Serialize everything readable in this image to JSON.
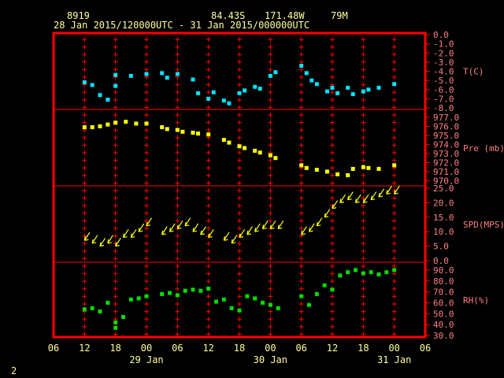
{
  "header": {
    "station_id": "8919",
    "latitude": "84.43S",
    "longitude": "171.48W",
    "elevation": "79M",
    "period": "28 Jan 2015/120000UTC - 31 Jan 2015/000000UTC"
  },
  "frame_number": "2",
  "colors": {
    "frame": "#ff0000",
    "text": "#ffff99",
    "axis_labels": "#ff8080",
    "temperature": "#00e5ff",
    "pressure": "#ffff00",
    "wind": "#ffff00",
    "rh": "#00dd00"
  },
  "x_axis": {
    "tick_labels": [
      "06",
      "12",
      "18",
      "00",
      "06",
      "12",
      "18",
      "00",
      "06",
      "12",
      "18",
      "00",
      "06"
    ],
    "day_labels": [
      "29 Jan",
      "30 Jan",
      "31 Jan"
    ],
    "hours_range": [
      6,
      78
    ]
  },
  "chart_data": [
    {
      "type": "scatter",
      "name": "T(C)",
      "ylabel": "T(C)",
      "yticks": [
        "0.0",
        "-1.0",
        "-2.0",
        "-3.0",
        "-4.0",
        "-5.0",
        "-6.0",
        "-7.0",
        "-8.0"
      ],
      "ylim": [
        -8,
        0
      ],
      "x": [
        12,
        13.5,
        15,
        16.5,
        18,
        18,
        21,
        24,
        27,
        28,
        30,
        33,
        34,
        36,
        37,
        39,
        40,
        42,
        43,
        45,
        46,
        48,
        49,
        54,
        55,
        56,
        57,
        59,
        60,
        61,
        63,
        64,
        66,
        67,
        69,
        72
      ],
      "values": [
        -5.2,
        -5.5,
        -6.6,
        -7.1,
        -4.4,
        -5.6,
        -4.5,
        -4.3,
        -4.2,
        -4.7,
        -4.3,
        -4.9,
        -6.4,
        -7.0,
        -6.3,
        -7.2,
        -7.5,
        -6.4,
        -6.1,
        -5.7,
        -5.9,
        -4.5,
        -4.1,
        -3.4,
        -4.2,
        -5.0,
        -5.4,
        -6.2,
        -5.8,
        -6.4,
        -5.8,
        -6.5,
        -6.2,
        -6.0,
        -5.8,
        -5.4
      ]
    },
    {
      "type": "scatter",
      "name": "Pre (mb)",
      "ylabel": "Pre (mb)",
      "yticks": [
        "977.0",
        "976.0",
        "975.0",
        "974.0",
        "973.0",
        "972.0",
        "971.0",
        "970.0"
      ],
      "ylim": [
        969.6,
        977.6
      ],
      "x": [
        12,
        13.5,
        15,
        16.5,
        18,
        20,
        22,
        24,
        27,
        28,
        30,
        31,
        33,
        34,
        36,
        39,
        40,
        42,
        43,
        45,
        46,
        48,
        49,
        54,
        55,
        57,
        59,
        61,
        63,
        64,
        66,
        67,
        69,
        72
      ],
      "values": [
        975.9,
        975.9,
        976.0,
        976.2,
        976.4,
        976.5,
        976.3,
        976.3,
        975.9,
        975.7,
        975.6,
        975.4,
        975.3,
        975.2,
        975.1,
        974.5,
        974.2,
        973.8,
        973.6,
        973.3,
        973.1,
        972.8,
        972.5,
        971.7,
        971.4,
        971.2,
        971.0,
        970.7,
        970.6,
        971.3,
        971.5,
        971.4,
        971.3,
        971.7
      ]
    },
    {
      "type": "wind_barbs",
      "name": "SPD(MPS)",
      "ylabel": "SPD(MPS)",
      "yticks": [
        "25.0",
        "20.0",
        "15.0",
        "10.0",
        "5.0",
        "0.0"
      ],
      "ylim": [
        0,
        25
      ],
      "x": [
        12,
        13.5,
        15,
        16.5,
        18,
        19.5,
        21,
        22.5,
        24,
        27,
        28.5,
        30,
        31.5,
        33,
        34.5,
        36,
        39,
        40.5,
        42,
        43.5,
        45,
        46.5,
        48,
        49.5,
        54,
        55.5,
        57,
        58.5,
        60,
        61.5,
        63,
        64.5,
        66,
        67.5,
        69,
        70.5,
        72
      ],
      "values": [
        7,
        6,
        5,
        6,
        5,
        8,
        8,
        10,
        12,
        9,
        10,
        11,
        12,
        10,
        9,
        8,
        7,
        6,
        8,
        9,
        10,
        11,
        11,
        11,
        9,
        10,
        12,
        15,
        18,
        20,
        21,
        20,
        20,
        21,
        22,
        23,
        23
      ]
    },
    {
      "type": "scatter",
      "name": "RH(%)",
      "ylabel": "RH(%)",
      "yticks": [
        "90.0",
        "80.0",
        "70.0",
        "60.0",
        "50.0",
        "40.0",
        "30.0"
      ],
      "ylim": [
        30,
        95
      ],
      "x": [
        12,
        13.5,
        15,
        16.5,
        18,
        18,
        19.5,
        21,
        22.5,
        24,
        27,
        28.5,
        30,
        31.5,
        33,
        34.5,
        36,
        37.5,
        39,
        40.5,
        42,
        43.5,
        45,
        46.5,
        48,
        49.5,
        54,
        55.5,
        57,
        58.5,
        60,
        61.5,
        63,
        64.5,
        66,
        67.5,
        69,
        70.5,
        72
      ],
      "values": [
        54,
        55,
        52,
        60,
        37,
        42,
        47,
        63,
        64,
        66,
        68,
        69,
        67,
        71,
        72,
        71,
        73,
        61,
        63,
        55,
        53,
        66,
        64,
        60,
        58,
        55,
        66,
        58,
        68,
        76,
        72,
        85,
        88,
        90,
        87,
        88,
        86,
        88,
        90
      ]
    }
  ]
}
